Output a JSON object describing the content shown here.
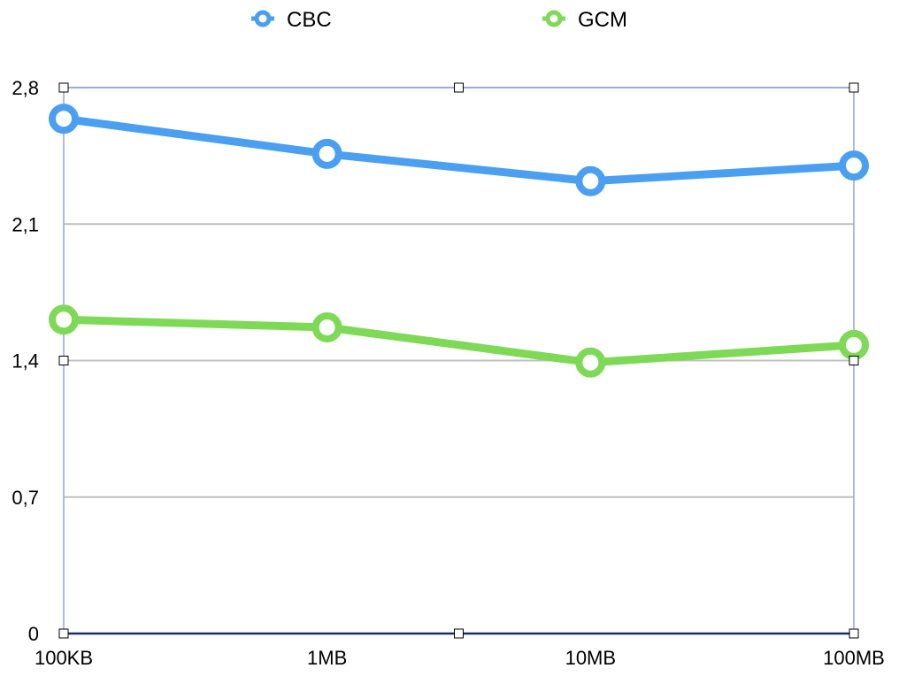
{
  "chart_data": {
    "type": "line",
    "title": "",
    "xlabel": "",
    "ylabel": "",
    "categories": [
      "100KB",
      "1MB",
      "10MB",
      "100MB"
    ],
    "ylim": [
      0,
      2.8
    ],
    "yticks": [
      {
        "value": 0,
        "label": "0"
      },
      {
        "value": 0.7,
        "label": "0,7"
      },
      {
        "value": 1.4,
        "label": "1,4"
      },
      {
        "value": 2.1,
        "label": "2,1"
      },
      {
        "value": 2.8,
        "label": "2,8"
      }
    ],
    "grid": true,
    "legend_position": "top-center",
    "series": [
      {
        "name": "CBC",
        "color": "#4a9ff0",
        "values": [
          2.64,
          2.46,
          2.32,
          2.4
        ]
      },
      {
        "name": "GCM",
        "color": "#7ed957",
        "values": [
          1.61,
          1.57,
          1.39,
          1.48
        ]
      }
    ]
  },
  "selection": {
    "frame_color": "#8ea6e0",
    "handle_icon": "square-handle-icon"
  }
}
